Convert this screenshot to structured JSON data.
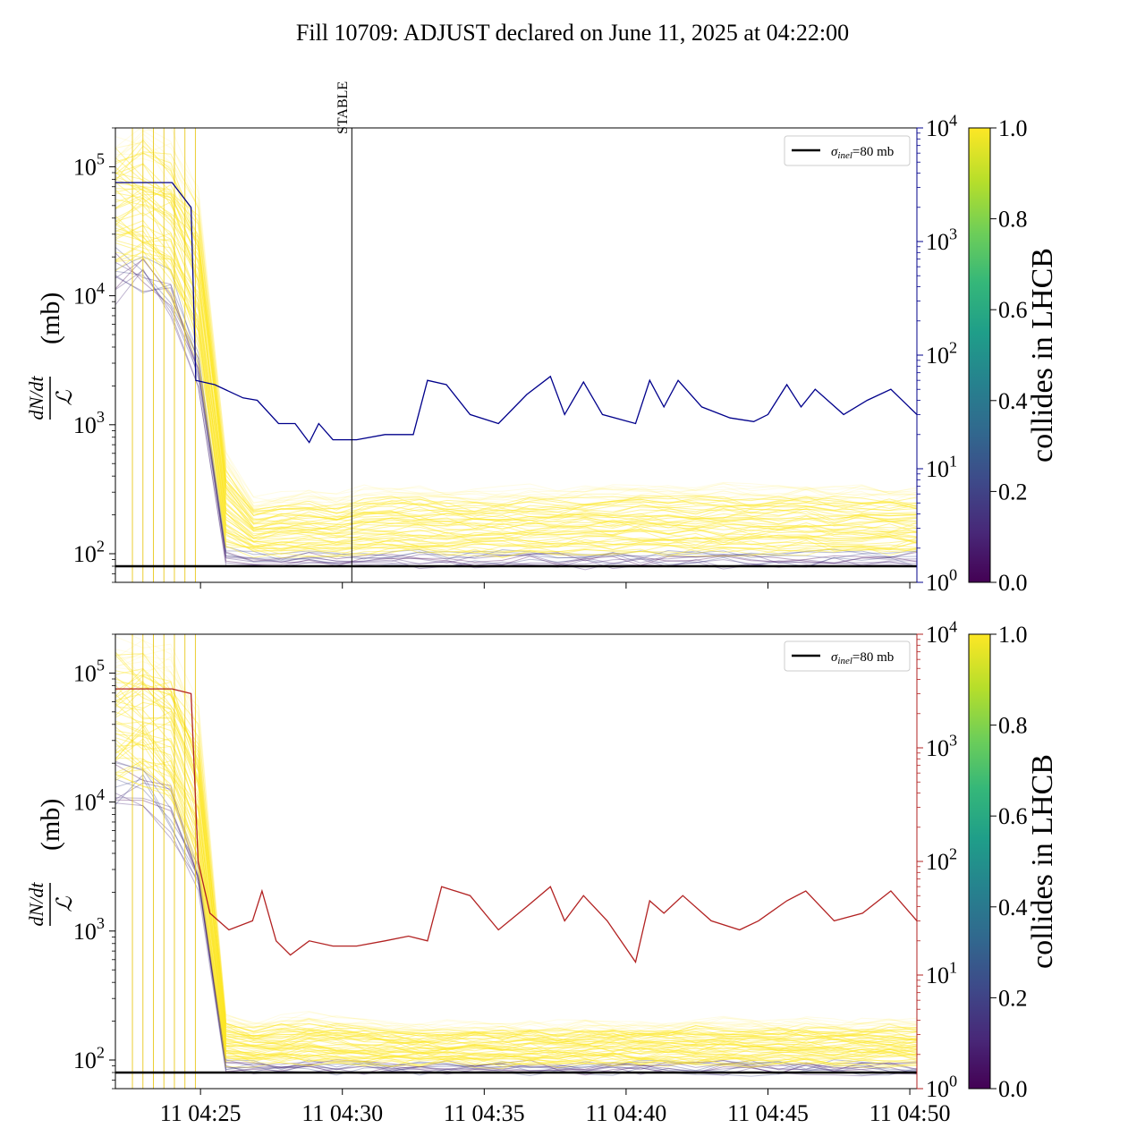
{
  "title": "Fill 10709: ADJUST declared on June 11, 2025 at 04:22:00",
  "colors": {
    "sigma_line": "#000000",
    "top_right_series": "#00008b",
    "bottom_right_series": "#b22222",
    "viridis": [
      "#440154",
      "#482878",
      "#3e4989",
      "#31688e",
      "#26828e",
      "#1f9e89",
      "#35b779",
      "#6ece58",
      "#b5de2b",
      "#fde725"
    ]
  },
  "chart_data": [
    {
      "type": "line",
      "panel": "top",
      "ylabel": "(mb)",
      "ylabel_math": "dN/dt over L",
      "y_scale": "log",
      "ylim": [
        60,
        200000
      ],
      "y_ticks": [
        "10^2",
        "10^3",
        "10^4",
        "10^5"
      ],
      "y2_scale": "log",
      "y2lim": [
        1,
        10000
      ],
      "y2_ticks": [
        "10^0",
        "10^1",
        "10^2",
        "10^3",
        "10^4"
      ],
      "x_ticks": [],
      "xlim": [
        "04:22:00",
        "04:50:15"
      ],
      "legend": {
        "position": "top-right",
        "entries": [
          {
            "label_main": "σ",
            "label_sub": "inel",
            "label_rest": "=80 mb"
          }
        ]
      },
      "sigma_inel_mb": 80,
      "annotation": {
        "text": "STABLE",
        "x": "04:30:20"
      },
      "colorbar": {
        "label": "collides in LHCB",
        "range": [
          0,
          1
        ],
        "ticks": [
          "0.0",
          "0.2",
          "0.4",
          "0.6",
          "0.8",
          "1.0"
        ]
      },
      "right_axis_series": {
        "x": [
          "04:22:00",
          "04:23:00",
          "04:24:00",
          "04:24:40",
          "04:24:50",
          "04:25:30",
          "04:26:30",
          "04:27:00",
          "04:27:45",
          "04:28:20",
          "04:28:50",
          "04:29:10",
          "04:29:40",
          "04:30:30",
          "04:31:30",
          "04:32:30",
          "04:33:00",
          "04:33:40",
          "04:34:30",
          "04:35:30",
          "04:36:30",
          "04:37:20",
          "04:37:50",
          "04:38:30",
          "04:39:10",
          "04:40:20",
          "04:40:50",
          "04:41:20",
          "04:41:50",
          "04:42:40",
          "04:43:40",
          "04:44:30",
          "04:45:00",
          "04:45:40",
          "04:46:10",
          "04:46:40",
          "04:47:40",
          "04:48:30",
          "04:49:20",
          "04:50:15"
        ],
        "y": [
          3300,
          3300,
          3300,
          2000,
          60,
          55,
          42,
          40,
          25,
          25,
          17,
          25,
          18,
          18,
          20,
          20,
          60,
          55,
          30,
          25,
          45,
          65,
          30,
          58,
          30,
          25,
          60,
          35,
          60,
          35,
          28,
          26,
          30,
          55,
          35,
          50,
          30,
          40,
          50,
          30
        ]
      },
      "spectator_band": {
        "median_mb": [
          60000,
          60000,
          40000,
          12000,
          240,
          95,
          100,
          120,
          110,
          120,
          140,
          160,
          130,
          125,
          120,
          100,
          95,
          100,
          100,
          110,
          110,
          115,
          110,
          110,
          120,
          115,
          120,
          115,
          120,
          115
        ],
        "upper_mb": [
          180000,
          180000,
          150000,
          60000,
          600,
          260,
          280,
          300,
          280,
          320,
          330,
          330,
          310,
          300,
          310,
          320,
          310,
          330,
          330,
          340,
          330,
          330,
          340,
          330,
          330,
          340,
          320,
          330,
          320,
          320
        ]
      }
    },
    {
      "type": "line",
      "panel": "bottom",
      "ylabel": "(mb)",
      "ylabel_math": "dN/dt over L",
      "y_scale": "log",
      "ylim": [
        60,
        200000
      ],
      "y_ticks": [
        "10^2",
        "10^3",
        "10^4",
        "10^5"
      ],
      "y2_scale": "log",
      "y2lim": [
        1,
        10000
      ],
      "y2_ticks": [
        "10^0",
        "10^1",
        "10^2",
        "10^3",
        "10^4"
      ],
      "x_ticks": [
        "11 04:25",
        "11 04:30",
        "11 04:35",
        "11 04:40",
        "11 04:45",
        "11 04:50"
      ],
      "xlim": [
        "04:22:00",
        "04:50:15"
      ],
      "legend": {
        "position": "top-right",
        "entries": [
          {
            "label_main": "σ",
            "label_sub": "inel",
            "label_rest": "=80 mb"
          }
        ]
      },
      "sigma_inel_mb": 80,
      "colorbar": {
        "label": "collides in LHCB",
        "range": [
          0,
          1
        ],
        "ticks": [
          "0.0",
          "0.2",
          "0.4",
          "0.6",
          "0.8",
          "1.0"
        ]
      },
      "right_axis_series": {
        "x": [
          "04:22:00",
          "04:23:00",
          "04:24:00",
          "04:24:40",
          "04:24:55",
          "04:25:20",
          "04:26:00",
          "04:26:50",
          "04:27:10",
          "04:27:40",
          "04:28:10",
          "04:28:50",
          "04:29:40",
          "04:30:30",
          "04:31:30",
          "04:32:20",
          "04:33:00",
          "04:33:30",
          "04:34:30",
          "04:35:30",
          "04:36:30",
          "04:37:20",
          "04:37:50",
          "04:38:30",
          "04:39:20",
          "04:40:20",
          "04:40:50",
          "04:41:20",
          "04:42:00",
          "04:43:00",
          "04:44:00",
          "04:44:40",
          "04:45:40",
          "04:46:20",
          "04:47:20",
          "04:48:20",
          "04:49:20",
          "04:50:15"
        ],
        "y": [
          3300,
          3300,
          3300,
          3000,
          100,
          35,
          25,
          30,
          55,
          20,
          15,
          20,
          18,
          18,
          20,
          22,
          20,
          60,
          50,
          25,
          40,
          60,
          30,
          50,
          30,
          13,
          45,
          35,
          50,
          30,
          25,
          30,
          45,
          55,
          30,
          35,
          55,
          30
        ]
      },
      "spectator_band": {
        "median_mb": [
          55000,
          55000,
          35000,
          10000,
          130,
          100,
          100,
          100,
          100,
          100,
          100,
          100,
          100,
          100,
          100,
          100,
          100,
          100,
          100,
          100,
          100,
          100,
          100,
          100,
          100,
          100,
          100,
          100,
          100,
          100
        ],
        "upper_mb": [
          170000,
          170000,
          140000,
          50000,
          220,
          200,
          210,
          220,
          210,
          200,
          190,
          190,
          190,
          190,
          190,
          190,
          190,
          195,
          195,
          195,
          200,
          200,
          205,
          200,
          200,
          200,
          200,
          200,
          200,
          200
        ]
      }
    }
  ]
}
